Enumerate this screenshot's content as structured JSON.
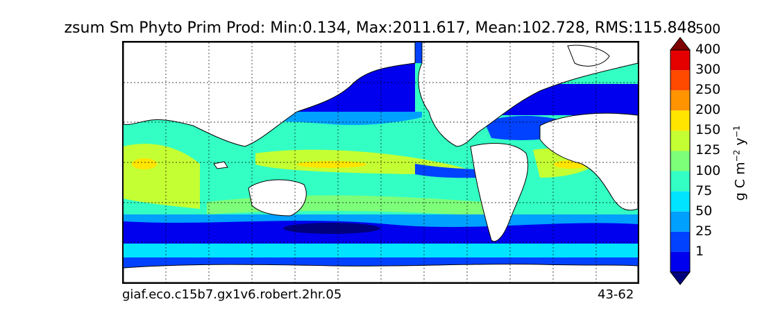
{
  "chart_data": {
    "type": "heatmap",
    "title": "zsum Sm Phyto Prim Prod: Min:0.134, Max:2011.617, Mean:102.728, RMS:115.848",
    "bottom_left_label": "giaf.eco.c15b7.gx1v6.robert.2hr.05",
    "bottom_right_label": "43-62",
    "colorbar": {
      "levels": [
        "1",
        "25",
        "50",
        "75",
        "100",
        "125",
        "150",
        "200",
        "250",
        "300",
        "400",
        "500"
      ],
      "label_parts": [
        "g C m",
        "−2",
        " y",
        "−1"
      ],
      "extend": "both",
      "colors": [
        "#00007f",
        "#0000ee",
        "#0042ff",
        "#00a0ff",
        "#00e4ff",
        "#33ffc4",
        "#7dff7a",
        "#c4ff33",
        "#ffe500",
        "#ff9400",
        "#ff4a00",
        "#e50000",
        "#7f0000"
      ]
    },
    "grid": "dashed",
    "projection": "global lon-lat"
  }
}
